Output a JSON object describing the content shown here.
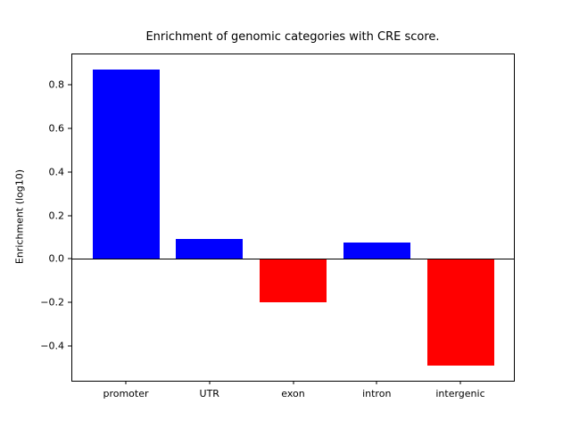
{
  "figure": {
    "background": "#ffffff",
    "axes_color": "#000000"
  },
  "chart_data": {
    "type": "bar",
    "title": "Enrichment of genomic categories with CRE score.",
    "xlabel": "",
    "ylabel": "Enrichment (log10)",
    "categories": [
      "promoter",
      "UTR",
      "exon",
      "intron",
      "intergenic"
    ],
    "values": [
      0.87,
      0.09,
      -0.2,
      0.075,
      -0.49
    ],
    "bar_colors": [
      "#0000ff",
      "#0000ff",
      "#ff0000",
      "#0000ff",
      "#ff0000"
    ],
    "positive_color": "#0000ff",
    "negative_color": "#ff0000",
    "ylim": [
      -0.56,
      0.94
    ],
    "xlim": [
      -0.64,
      4.64
    ],
    "bar_width_units": 0.8,
    "yticks": [
      -0.4,
      -0.2,
      0.0,
      0.2,
      0.4,
      0.6,
      0.8
    ],
    "grid": false,
    "zero_line": true,
    "legend": null
  }
}
